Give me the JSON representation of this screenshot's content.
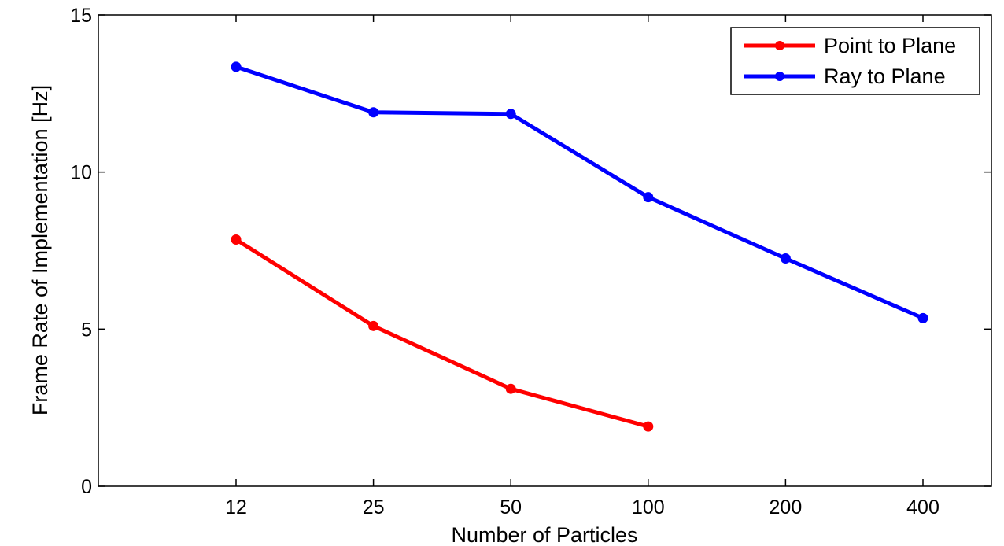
{
  "chart_data": {
    "type": "line",
    "title": "",
    "xlabel": "Number of Particles",
    "ylabel": "Frame Rate of Implementation [Hz]",
    "categories": [
      "12",
      "25",
      "50",
      "100",
      "200",
      "400"
    ],
    "ylim": [
      0,
      15
    ],
    "yticks": [
      "0",
      "5",
      "10",
      "15"
    ],
    "grid": false,
    "legend_position": "top-right",
    "series": [
      {
        "name": "Point to Plane",
        "color": "#ff0000",
        "values": [
          7.85,
          5.1,
          3.1,
          1.9,
          null,
          null
        ]
      },
      {
        "name": "Ray to Plane",
        "color": "#0000ff",
        "values": [
          13.35,
          11.9,
          11.85,
          9.2,
          7.25,
          5.35
        ]
      }
    ]
  }
}
